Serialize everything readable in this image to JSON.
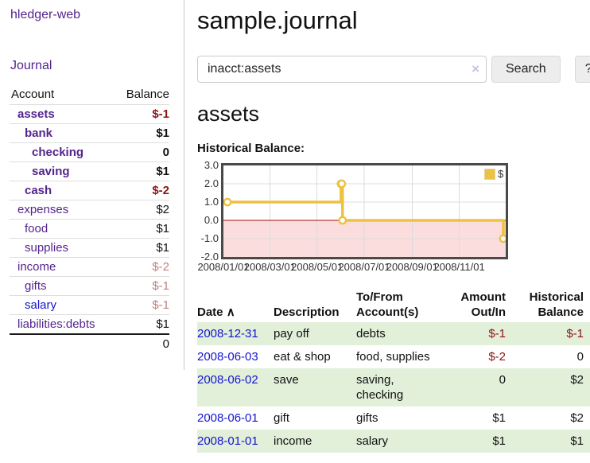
{
  "app": {
    "brand": "hledger-web"
  },
  "colors": {
    "link_purple": "#54248c",
    "link_blue": "#1414d2",
    "negative_strong": "#8c1515",
    "negative_soft": "#c08080",
    "row_green": "#e2efd9",
    "accent_yellow": "#edc240"
  },
  "sidebar": {
    "journal_link": "Journal",
    "accounts_table": {
      "account_header": "Account",
      "balance_header": "Balance",
      "rows": [
        {
          "name": "assets",
          "balance": "$-1",
          "level": 0,
          "bold": true,
          "link_color": "purple",
          "balance_style": "neg-strong"
        },
        {
          "name": "bank",
          "balance": "$1",
          "level": 1,
          "bold": true,
          "link_color": "purple",
          "balance_style": "plain"
        },
        {
          "name": "checking",
          "balance": "0",
          "level": 2,
          "bold": true,
          "link_color": "purple",
          "balance_style": "plain"
        },
        {
          "name": "saving",
          "balance": "$1",
          "level": 2,
          "bold": true,
          "link_color": "purple",
          "balance_style": "plain"
        },
        {
          "name": "cash",
          "balance": "$-2",
          "level": 1,
          "bold": true,
          "link_color": "purple",
          "balance_style": "neg-strong"
        },
        {
          "name": "expenses",
          "balance": "$2",
          "level": 0,
          "bold": false,
          "link_color": "purple",
          "balance_style": "plain"
        },
        {
          "name": "food",
          "balance": "$1",
          "level": 1,
          "bold": false,
          "link_color": "purple",
          "balance_style": "plain"
        },
        {
          "name": "supplies",
          "balance": "$1",
          "level": 1,
          "bold": false,
          "link_color": "purple",
          "balance_style": "plain"
        },
        {
          "name": "income",
          "balance": "$-2",
          "level": 0,
          "bold": false,
          "link_color": "purple",
          "balance_style": "neg-soft"
        },
        {
          "name": "gifts",
          "balance": "$-1",
          "level": 1,
          "bold": false,
          "link_color": "purple",
          "balance_style": "neg-soft"
        },
        {
          "name": "salary",
          "balance": "$-1",
          "level": 1,
          "bold": false,
          "link_color": "blue",
          "balance_style": "neg-soft"
        },
        {
          "name": "liabilities:debts",
          "balance": "$1",
          "level": 0,
          "bold": false,
          "link_color": "purple",
          "balance_style": "plain"
        }
      ],
      "total": "0"
    }
  },
  "main": {
    "title": "sample.journal",
    "search": {
      "value": "inacct:assets",
      "clear_icon": "×",
      "button": "Search",
      "help": "?"
    },
    "account_heading": "assets",
    "chart_title": "Historical Balance:",
    "chart_data": {
      "type": "line",
      "step": true,
      "title": "Historical Balance:",
      "legend": {
        "label": "$",
        "position": "top-right"
      },
      "series": [
        {
          "name": "$",
          "color": "#edc240",
          "points": [
            [
              "2008-01-01",
              1
            ],
            [
              "2008-06-01",
              2
            ],
            [
              "2008-06-02",
              2
            ],
            [
              "2008-06-03",
              0
            ],
            [
              "2008-12-31",
              -1
            ]
          ]
        }
      ],
      "ylim": [
        -2,
        3
      ],
      "yticks": [
        3,
        2,
        1,
        0,
        -1,
        -2
      ],
      "xticks": [
        {
          "date": "2008-01-01",
          "label": "2008/01/01"
        },
        {
          "date": "2008-03-01",
          "label": "2008/03/01"
        },
        {
          "date": "2008-05-01",
          "label": "2008/05/01"
        },
        {
          "date": "2008-07-01",
          "label": "2008/07/01"
        },
        {
          "date": "2008-09-01",
          "label": "2008/09/01"
        },
        {
          "date": "2008-11-01",
          "label": "2008/11/01"
        }
      ],
      "grid": true,
      "grid_color": "#dcdcdc",
      "border_color": "#4a4a4a",
      "zero_line_color": "#9c1006",
      "negative_fill": "#fbdddd"
    },
    "register": {
      "headers": {
        "date": "Date",
        "sort_icon": "∧",
        "description": "Description",
        "accounts": "To/From Account(s)",
        "amount": "Amount Out/In",
        "balance": "Historical Balance"
      },
      "rows": [
        {
          "date": "2008-12-31",
          "description": "pay off",
          "accounts": "debts",
          "amount": "$-1",
          "amount_style": "neg-strong",
          "balance": "$-1",
          "balance_style": "neg-strong"
        },
        {
          "date": "2008-06-03",
          "description": "eat & shop",
          "accounts": "food, supplies",
          "amount": "$-2",
          "amount_style": "neg-strong",
          "balance": "0",
          "balance_style": "plain"
        },
        {
          "date": "2008-06-02",
          "description": "save",
          "accounts": "saving, checking",
          "amount": "0",
          "amount_style": "plain",
          "balance": "$2",
          "balance_style": "plain"
        },
        {
          "date": "2008-06-01",
          "description": "gift",
          "accounts": "gifts",
          "amount": "$1",
          "amount_style": "plain",
          "balance": "$2",
          "balance_style": "plain"
        },
        {
          "date": "2008-01-01",
          "description": "income",
          "accounts": "salary",
          "amount": "$1",
          "amount_style": "plain",
          "balance": "$1",
          "balance_style": "plain"
        }
      ]
    }
  }
}
